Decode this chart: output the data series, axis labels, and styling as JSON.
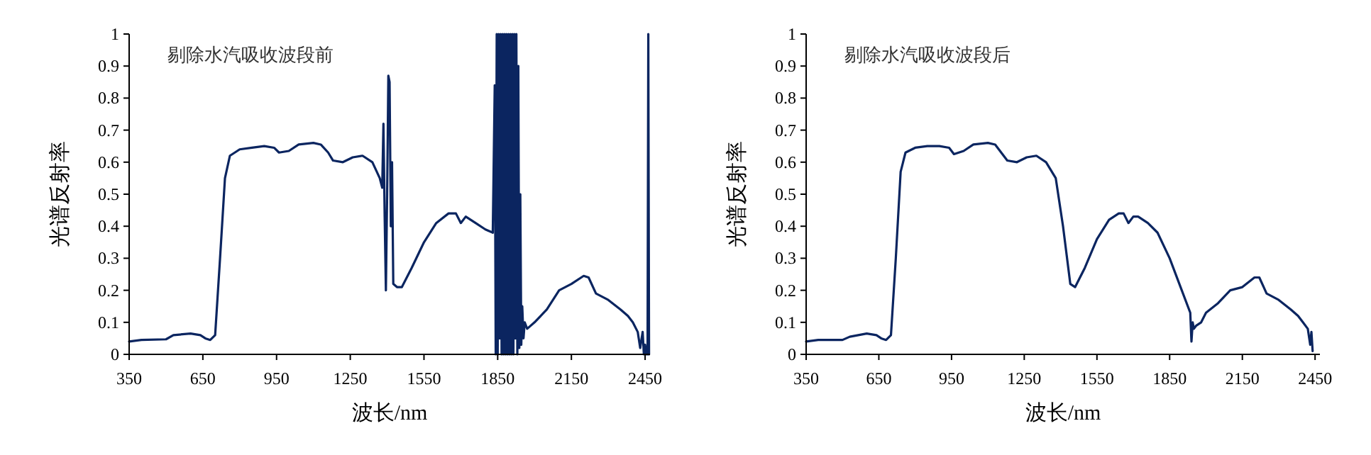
{
  "chart_data": [
    {
      "type": "line",
      "xlabel": "波长/nm",
      "ylabel": "光谱反射率",
      "annotations": [
        "剔除水汽吸收波段前"
      ],
      "xlim": [
        350,
        2470
      ],
      "ylim": [
        0,
        1
      ],
      "xticks": [
        350,
        650,
        950,
        1250,
        1550,
        1850,
        2150,
        2450
      ],
      "yticks": [
        0,
        0.1,
        0.2,
        0.3,
        0.4,
        0.5,
        0.6,
        0.7,
        0.8,
        0.9,
        1
      ],
      "grid": false,
      "series": [
        {
          "color": "#0b2560",
          "x": [
            350,
            400,
            500,
            530,
            600,
            640,
            660,
            680,
            700,
            720,
            740,
            760,
            800,
            850,
            900,
            940,
            960,
            1000,
            1040,
            1100,
            1130,
            1160,
            1180,
            1220,
            1260,
            1300,
            1340,
            1370,
            1380,
            1385,
            1390,
            1395,
            1400,
            1405,
            1410,
            1415,
            1420,
            1425,
            1440,
            1460,
            1500,
            1550,
            1600,
            1650,
            1680,
            1700,
            1720,
            1760,
            1800,
            1830,
            1838,
            1842,
            1846,
            1850,
            1854,
            1858,
            1862,
            1866,
            1870,
            1874,
            1878,
            1882,
            1886,
            1890,
            1894,
            1898,
            1902,
            1906,
            1910,
            1914,
            1918,
            1922,
            1926,
            1930,
            1934,
            1938,
            1942,
            1946,
            1950,
            1955,
            1960,
            1970,
            2000,
            2050,
            2100,
            2150,
            2200,
            2220,
            2250,
            2300,
            2350,
            2380,
            2400,
            2420,
            2430,
            2440,
            2445,
            2450,
            2455,
            2460,
            2463,
            2466
          ],
          "values": [
            0.04,
            0.045,
            0.047,
            0.06,
            0.065,
            0.06,
            0.05,
            0.045,
            0.06,
            0.3,
            0.55,
            0.62,
            0.64,
            0.645,
            0.65,
            0.645,
            0.63,
            0.635,
            0.655,
            0.66,
            0.655,
            0.63,
            0.605,
            0.6,
            0.615,
            0.62,
            0.6,
            0.55,
            0.52,
            0.72,
            0.43,
            0.2,
            0.5,
            0.87,
            0.85,
            0.4,
            0.6,
            0.22,
            0.21,
            0.21,
            0.27,
            0.35,
            0.41,
            0.44,
            0.44,
            0.41,
            0.43,
            0.41,
            0.39,
            0.38,
            0.84,
            0,
            1,
            0,
            1,
            0.05,
            1,
            0,
            1,
            0,
            1,
            0,
            1,
            0,
            1,
            0,
            1,
            0,
            1,
            0,
            1,
            0.05,
            1,
            0,
            0.9,
            0.02,
            0.5,
            0.03,
            0.15,
            0.05,
            0.1,
            0.08,
            0.1,
            0.14,
            0.2,
            0.22,
            0.245,
            0.24,
            0.19,
            0.17,
            0.14,
            0.12,
            0.1,
            0.07,
            0.02,
            0.07,
            0,
            0.03,
            0,
            0,
            1,
            0
          ]
        }
      ]
    },
    {
      "type": "line",
      "xlabel": "波长/nm",
      "ylabel": "光谱反射率",
      "annotations": [
        "剔除水汽吸收波段后"
      ],
      "xlim": [
        350,
        2470
      ],
      "ylim": [
        0,
        1
      ],
      "xticks": [
        350,
        650,
        950,
        1250,
        1550,
        1850,
        2150,
        2450
      ],
      "yticks": [
        0,
        0.1,
        0.2,
        0.3,
        0.4,
        0.5,
        0.6,
        0.7,
        0.8,
        0.9,
        1
      ],
      "grid": false,
      "series": [
        {
          "color": "#0b2560",
          "x": [
            350,
            400,
            500,
            530,
            600,
            640,
            660,
            680,
            700,
            720,
            740,
            760,
            800,
            850,
            900,
            940,
            960,
            1000,
            1040,
            1100,
            1130,
            1160,
            1180,
            1220,
            1260,
            1300,
            1340,
            1380,
            1410,
            1440,
            1460,
            1500,
            1550,
            1600,
            1640,
            1660,
            1680,
            1700,
            1720,
            1760,
            1800,
            1850,
            1900,
            1935,
            1940,
            1945,
            1950,
            1960,
            1980,
            2000,
            2050,
            2100,
            2150,
            2200,
            2220,
            2250,
            2300,
            2350,
            2380,
            2400,
            2420,
            2430,
            2435,
            2440
          ],
          "values": [
            0.04,
            0.045,
            0.045,
            0.055,
            0.065,
            0.06,
            0.05,
            0.045,
            0.06,
            0.3,
            0.57,
            0.63,
            0.645,
            0.65,
            0.65,
            0.645,
            0.625,
            0.635,
            0.655,
            0.66,
            0.655,
            0.625,
            0.605,
            0.6,
            0.615,
            0.62,
            0.6,
            0.55,
            0.4,
            0.22,
            0.21,
            0.27,
            0.36,
            0.42,
            0.44,
            0.44,
            0.41,
            0.43,
            0.43,
            0.41,
            0.38,
            0.3,
            0.2,
            0.13,
            0.04,
            0.1,
            0.08,
            0.09,
            0.1,
            0.13,
            0.16,
            0.2,
            0.21,
            0.24,
            0.24,
            0.19,
            0.17,
            0.14,
            0.12,
            0.1,
            0.08,
            0.03,
            0.07,
            0.01
          ]
        }
      ]
    }
  ]
}
